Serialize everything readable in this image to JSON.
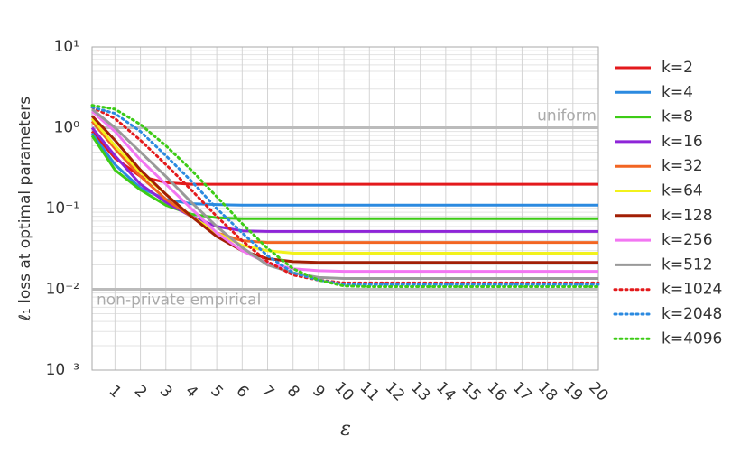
{
  "chart_data": {
    "type": "line",
    "log_y": true,
    "grid": true,
    "minor_grid": true,
    "y_label": "ℓ₁ loss at optimal parameters",
    "x_label": "ε",
    "x": [
      0.1,
      1,
      2,
      3,
      4,
      5,
      6,
      7,
      8,
      9,
      10,
      11,
      12,
      13,
      14,
      15,
      16,
      17,
      18,
      19,
      20
    ],
    "xlim": [
      0.1,
      20
    ],
    "xticks": [
      1,
      2,
      3,
      4,
      5,
      6,
      7,
      8,
      9,
      10,
      11,
      12,
      13,
      14,
      15,
      16,
      17,
      18,
      19,
      20
    ],
    "ylim": [
      0.001,
      10
    ],
    "yticks": [
      {
        "value": 0.001,
        "label": "10⁻³"
      },
      {
        "value": 0.01,
        "label": "10⁻²"
      },
      {
        "value": 0.1,
        "label": "10⁻¹"
      },
      {
        "value": 1,
        "label": "10⁰"
      },
      {
        "value": 10,
        "label": "10¹"
      }
    ],
    "reference_lines": [
      {
        "value": 1,
        "label": "uniform"
      },
      {
        "value": 0.01,
        "label": "non-private empirical"
      }
    ],
    "series": [
      {
        "name": "k=2",
        "color": "#e31a1c",
        "style": "solid",
        "values": [
          0.9,
          0.42,
          0.25,
          0.21,
          0.2,
          0.2,
          0.2,
          0.2,
          0.2,
          0.2,
          0.2,
          0.2,
          0.2,
          0.2,
          0.2,
          0.2,
          0.2,
          0.2,
          0.2,
          0.2,
          0.2
        ]
      },
      {
        "name": "k=4",
        "color": "#2b8ae0",
        "style": "solid",
        "values": [
          0.85,
          0.35,
          0.18,
          0.13,
          0.115,
          0.112,
          0.11,
          0.11,
          0.11,
          0.11,
          0.11,
          0.11,
          0.11,
          0.11,
          0.11,
          0.11,
          0.11,
          0.11,
          0.11,
          0.11,
          0.11
        ]
      },
      {
        "name": "k=8",
        "color": "#3dcc16",
        "style": "solid",
        "values": [
          0.8,
          0.3,
          0.17,
          0.11,
          0.085,
          0.077,
          0.075,
          0.075,
          0.075,
          0.075,
          0.075,
          0.075,
          0.075,
          0.075,
          0.075,
          0.075,
          0.075,
          0.075,
          0.075,
          0.075,
          0.075
        ]
      },
      {
        "name": "k=16",
        "color": "#8e25d8",
        "style": "solid",
        "values": [
          1.0,
          0.45,
          0.2,
          0.12,
          0.08,
          0.06,
          0.053,
          0.052,
          0.052,
          0.052,
          0.052,
          0.052,
          0.052,
          0.052,
          0.052,
          0.052,
          0.052,
          0.052,
          0.052,
          0.052,
          0.052
        ]
      },
      {
        "name": "k=32",
        "color": "#f26522",
        "style": "solid",
        "values": [
          1.2,
          0.55,
          0.25,
          0.13,
          0.08,
          0.05,
          0.04,
          0.038,
          0.038,
          0.038,
          0.038,
          0.038,
          0.038,
          0.038,
          0.038,
          0.038,
          0.038,
          0.038,
          0.038,
          0.038,
          0.038
        ]
      },
      {
        "name": "k=64",
        "color": "#f2f21c",
        "style": "solid",
        "values": [
          1.3,
          0.6,
          0.28,
          0.15,
          0.08,
          0.05,
          0.035,
          0.03,
          0.028,
          0.028,
          0.028,
          0.028,
          0.028,
          0.028,
          0.028,
          0.028,
          0.028,
          0.028,
          0.028,
          0.028,
          0.028
        ]
      },
      {
        "name": "k=128",
        "color": "#a21f05",
        "style": "solid",
        "values": [
          1.4,
          0.7,
          0.3,
          0.15,
          0.08,
          0.045,
          0.03,
          0.024,
          0.022,
          0.0215,
          0.0215,
          0.0215,
          0.0215,
          0.0215,
          0.0215,
          0.0215,
          0.0215,
          0.0215,
          0.0215,
          0.0215,
          0.0215
        ]
      },
      {
        "name": "k=256",
        "color": "#f276f2",
        "style": "solid",
        "values": [
          1.6,
          0.9,
          0.4,
          0.2,
          0.1,
          0.05,
          0.03,
          0.021,
          0.018,
          0.017,
          0.0167,
          0.0167,
          0.0167,
          0.0167,
          0.0167,
          0.0167,
          0.0167,
          0.0167,
          0.0167,
          0.0167,
          0.0167
        ]
      },
      {
        "name": "k=512",
        "color": "#999999",
        "style": "solid",
        "values": [
          1.7,
          1.0,
          0.5,
          0.25,
          0.12,
          0.06,
          0.033,
          0.02,
          0.016,
          0.014,
          0.0136,
          0.0136,
          0.0136,
          0.0136,
          0.0136,
          0.0136,
          0.0136,
          0.0136,
          0.0136,
          0.0136,
          0.0136
        ]
      },
      {
        "name": "k=1024",
        "color": "#e31a1c",
        "style": "dotted",
        "values": [
          1.8,
          1.3,
          0.7,
          0.35,
          0.17,
          0.08,
          0.04,
          0.022,
          0.015,
          0.013,
          0.012,
          0.012,
          0.012,
          0.012,
          0.012,
          0.012,
          0.012,
          0.012,
          0.012,
          0.012,
          0.012
        ]
      },
      {
        "name": "k=2048",
        "color": "#2b8ae0",
        "style": "dotted",
        "values": [
          1.8,
          1.5,
          0.9,
          0.45,
          0.22,
          0.1,
          0.05,
          0.026,
          0.016,
          0.013,
          0.0115,
          0.0115,
          0.0115,
          0.0115,
          0.0115,
          0.0115,
          0.0115,
          0.0115,
          0.0115,
          0.0115,
          0.0115
        ]
      },
      {
        "name": "k=4096",
        "color": "#3dcc16",
        "style": "dotted",
        "values": [
          1.9,
          1.7,
          1.1,
          0.6,
          0.3,
          0.14,
          0.065,
          0.032,
          0.018,
          0.013,
          0.011,
          0.0108,
          0.0108,
          0.0108,
          0.0108,
          0.0108,
          0.0108,
          0.0108,
          0.0108,
          0.0108,
          0.0108
        ]
      }
    ]
  }
}
